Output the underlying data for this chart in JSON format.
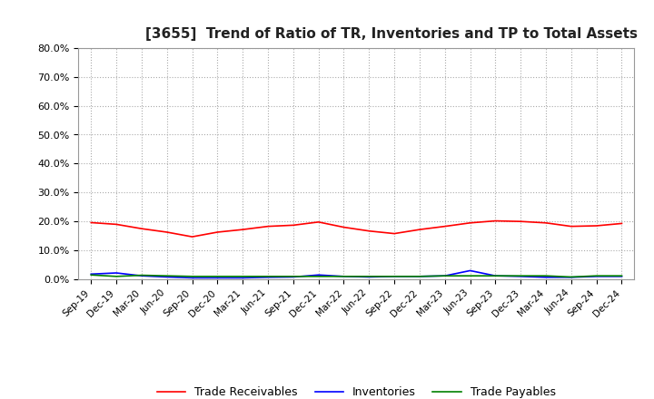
{
  "title": "[3655]  Trend of Ratio of TR, Inventories and TP to Total Assets",
  "title_fontsize": 11,
  "background_color": "#ffffff",
  "grid_color": "#aaaaaa",
  "ylim": [
    0.0,
    0.8
  ],
  "yticks": [
    0.0,
    0.1,
    0.2,
    0.3,
    0.4,
    0.5,
    0.6,
    0.7,
    0.8
  ],
  "ytick_labels": [
    "0.0%",
    "10.0%",
    "20.0%",
    "30.0%",
    "40.0%",
    "50.0%",
    "60.0%",
    "70.0%",
    "80.0%"
  ],
  "x_labels": [
    "Sep-19",
    "Dec-19",
    "Mar-20",
    "Jun-20",
    "Sep-20",
    "Dec-20",
    "Mar-21",
    "Jun-21",
    "Sep-21",
    "Dec-21",
    "Mar-22",
    "Jun-22",
    "Sep-22",
    "Dec-22",
    "Mar-23",
    "Jun-23",
    "Sep-23",
    "Dec-23",
    "Mar-24",
    "Jun-24",
    "Sep-24",
    "Dec-24"
  ],
  "trade_receivables": [
    0.196,
    0.19,
    0.175,
    0.163,
    0.147,
    0.163,
    0.172,
    0.183,
    0.187,
    0.198,
    0.18,
    0.167,
    0.158,
    0.172,
    0.183,
    0.195,
    0.202,
    0.2,
    0.195,
    0.183,
    0.185,
    0.193
  ],
  "inventories": [
    0.018,
    0.022,
    0.012,
    0.008,
    0.005,
    0.005,
    0.005,
    0.007,
    0.008,
    0.015,
    0.01,
    0.008,
    0.01,
    0.01,
    0.012,
    0.03,
    0.012,
    0.01,
    0.007,
    0.007,
    0.01,
    0.01
  ],
  "trade_payables": [
    0.015,
    0.01,
    0.014,
    0.012,
    0.01,
    0.01,
    0.01,
    0.01,
    0.01,
    0.01,
    0.01,
    0.01,
    0.01,
    0.01,
    0.012,
    0.012,
    0.012,
    0.012,
    0.012,
    0.008,
    0.012,
    0.012
  ],
  "tr_color": "#ff0000",
  "inv_color": "#0000ff",
  "tp_color": "#008000",
  "tr_label": "Trade Receivables",
  "inv_label": "Inventories",
  "tp_label": "Trade Payables",
  "line_width": 1.2
}
